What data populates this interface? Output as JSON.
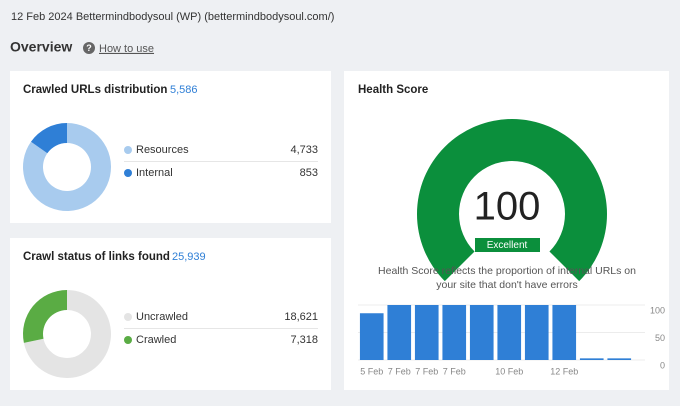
{
  "header": {
    "title": "12 Feb 2024 Bettermindbodysoul (WP) (bettermindbodysoul.com/)"
  },
  "overview": {
    "title": "Overview",
    "help": "How to use"
  },
  "crawled": {
    "type": "pie",
    "title": "Crawled URLs distribution",
    "total": "5,586",
    "items": [
      {
        "name": "Resources",
        "value": 4733,
        "label": "4,733",
        "color": "#a8cbee"
      },
      {
        "name": "Internal",
        "value": 853,
        "label": "853",
        "color": "#2f7fd6"
      }
    ]
  },
  "crawl_status": {
    "type": "pie",
    "title": "Crawl status of links found",
    "total": "25,939",
    "items": [
      {
        "name": "Uncrawled",
        "value": 18621,
        "label": "18,621",
        "color": "#e4e4e4"
      },
      {
        "name": "Crawled",
        "value": 7318,
        "label": "7,318",
        "color": "#5aac44"
      }
    ]
  },
  "health": {
    "title": "Health Score",
    "score": 100,
    "rating": "Excellent",
    "color": "#0b8f3c",
    "description": "Health Score reflects the proportion of internal URLs on your site that don't have errors",
    "chart": {
      "type": "bar",
      "categories": [
        "5 Feb",
        "7 Feb",
        "7 Feb",
        "7 Feb",
        null,
        "10 Feb",
        null,
        "12 Feb",
        null,
        null
      ],
      "values": [
        85,
        100,
        100,
        100,
        100,
        100,
        100,
        100,
        3,
        3
      ],
      "color": "#2f7fd6",
      "ylim": [
        0,
        100
      ],
      "yticks": [
        0,
        50,
        100
      ]
    }
  }
}
